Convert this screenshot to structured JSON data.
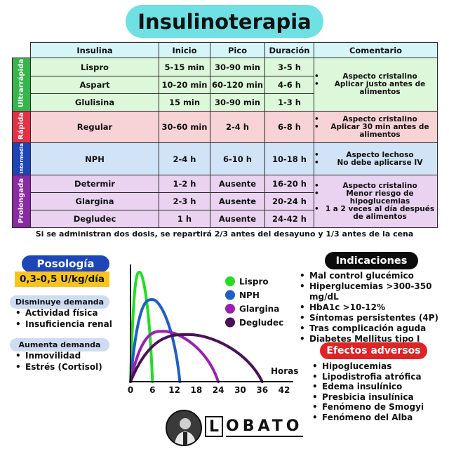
{
  "title": "Insulinoterapia",
  "table": {
    "headers": [
      "Insulina",
      "Inicio",
      "Pico",
      "Duración",
      "Comentario"
    ],
    "groups": [
      {
        "category": "Ultrarrápida",
        "color": "#36b54a",
        "rows": [
          {
            "insulina": "Lispro",
            "inicio": "5-15 min",
            "pico": "30-90 min",
            "duracion": "3-5 h"
          },
          {
            "insulina": "Aspart",
            "inicio": "10-20 min",
            "pico": "60-120 min",
            "duracion": "4-6 h"
          },
          {
            "insulina": "Glulisina",
            "inicio": "15 min",
            "pico": "30-90 min",
            "duracion": "1-3 h"
          }
        ],
        "comment": [
          "Aspecto cristalino",
          "Aplicar justo antes de alimentos"
        ]
      },
      {
        "category": "Rápida",
        "color": "#e53148",
        "rows": [
          {
            "insulina": "Regular",
            "inicio": "30-60 min",
            "pico": "2-4 h",
            "duracion": "6-8 h"
          }
        ],
        "comment": [
          "Aspecto cristalino",
          "Aplicar 30 min antes de alimentos"
        ]
      },
      {
        "category": "Intermedia",
        "color": "#1f44b8",
        "rows": [
          {
            "insulina": "NPH",
            "inicio": "2-4 h",
            "pico": "6-10 h",
            "duracion": "10-18 h"
          }
        ],
        "comment": [
          "Aspecto lechoso",
          "No debe aplicarse IV"
        ]
      },
      {
        "category": "Prolongada",
        "color": "#8a2aa5",
        "rows": [
          {
            "insulina": "Determir",
            "inicio": "1-2 h",
            "pico": "Ausente",
            "duracion": "16-20 h"
          },
          {
            "insulina": "Glargina",
            "inicio": "2-3 h",
            "pico": "Ausente",
            "duracion": "20-24 h"
          },
          {
            "insulina": "Degludec",
            "inicio": "1 h",
            "pico": "Ausente",
            "duracion": "24-42 h"
          }
        ],
        "comment": [
          "Aspecto cristalino",
          "Menor riesgo de hipoglucemias",
          "1 a 2 veces al día después de alimentos"
        ]
      }
    ]
  },
  "footnote": "Si se administran dos dosis, se repartirá 2/3 antes del desayuno y 1/3 antes de la cena",
  "posologia": {
    "label": "Posología",
    "dose": "0,3-0,5 U/kg/día",
    "disminuye": {
      "label": "Disminuye demanda",
      "items": [
        "Actividad física",
        "Insuficiencia renal"
      ]
    },
    "aumenta": {
      "label": "Aumenta demanda",
      "items": [
        "Inmovilidad",
        "Estrés (Cortisol)"
      ]
    }
  },
  "indicaciones": {
    "label": "Indicaciones",
    "items": [
      "Mal control glucémico",
      "Hiperglucemias >300-350 mg/dL",
      "HbA1c >10-12%",
      "Síntomas persistentes (4P)",
      "Tras complicación aguda",
      "Diabetes Mellitus tipo I"
    ]
  },
  "efectos": {
    "label": "Efectos adversos",
    "items": [
      "Hipoglucemias",
      "Lipodistrofia atrófica",
      "Edema insulínico",
      "Presbicia insulínica",
      "Fenómeno de Smogyi",
      "Fenómeno del Alba"
    ]
  },
  "chart_data": {
    "type": "area",
    "xlabel": "Horas",
    "ylabel": "",
    "xticks": [
      0,
      6,
      12,
      18,
      24,
      30,
      36,
      42
    ],
    "xlim": [
      0,
      42
    ],
    "grid": false,
    "legend": "top-right",
    "series": [
      {
        "name": "Lispro",
        "color": "#22dd22",
        "start": 0,
        "peak_x": 2.5,
        "peak_y": 1.0,
        "end": 6
      },
      {
        "name": "NPH",
        "color": "#1f5fc4",
        "start": 0,
        "peak_x": 6,
        "peak_y": 0.75,
        "end": 13.5
      },
      {
        "name": "Glargina",
        "color": "#9b1fb1",
        "start": 0,
        "peak_x": 9,
        "peak_y": 0.46,
        "end": 24
      },
      {
        "name": "Degludec",
        "color": "#4a1158",
        "start": 0,
        "peak_x": 16,
        "peak_y": 0.43,
        "end": 36
      }
    ]
  },
  "logo": {
    "text_first": "L",
    "text_rest": "OBATO"
  }
}
